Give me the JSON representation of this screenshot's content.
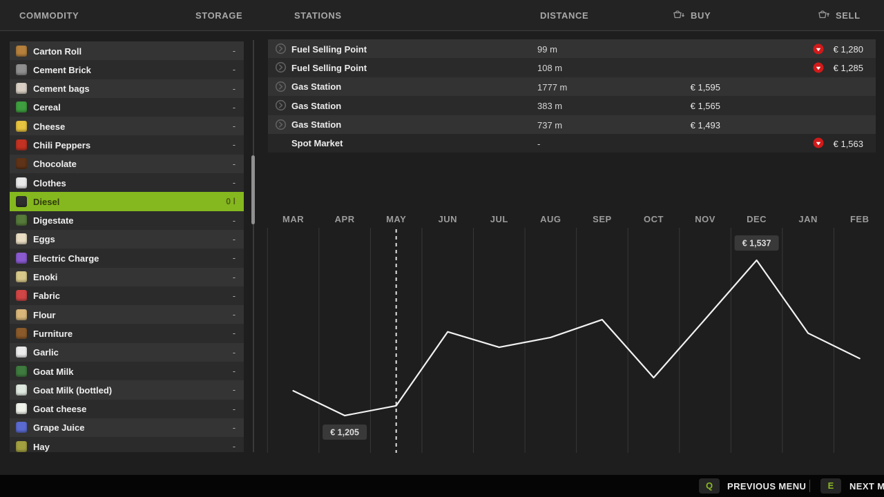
{
  "header": {
    "commodity": "COMMODITY",
    "storage": "STORAGE",
    "stations": "STATIONS",
    "distance": "DISTANCE",
    "buy": "BUY",
    "sell": "SELL"
  },
  "sidebar": {
    "items": [
      {
        "label": "Carton Roll",
        "value": "-",
        "icon": "carton-roll-icon",
        "icon_color": "#b5803c",
        "selected": false
      },
      {
        "label": "Cement Brick",
        "value": "-",
        "icon": "cement-brick-icon",
        "icon_color": "#8f8f8f",
        "selected": false
      },
      {
        "label": "Cement bags",
        "value": "-",
        "icon": "cement-bags-icon",
        "icon_color": "#d9cfc4",
        "selected": false
      },
      {
        "label": "Cereal",
        "value": "-",
        "icon": "cereal-icon",
        "icon_color": "#3f9e3f",
        "selected": false
      },
      {
        "label": "Cheese",
        "value": "-",
        "icon": "cheese-icon",
        "icon_color": "#e7c33f",
        "selected": false
      },
      {
        "label": "Chili Peppers",
        "value": "-",
        "icon": "chili-peppers-icon",
        "icon_color": "#c23222",
        "selected": false
      },
      {
        "label": "Chocolate",
        "value": "-",
        "icon": "chocolate-icon",
        "icon_color": "#5f3317",
        "selected": false
      },
      {
        "label": "Clothes",
        "value": "-",
        "icon": "clothes-icon",
        "icon_color": "#e9e9e9",
        "selected": false
      },
      {
        "label": "Diesel",
        "value": "0 l",
        "icon": "diesel-icon",
        "icon_color": "#2e2e2e",
        "selected": true
      },
      {
        "label": "Digestate",
        "value": "-",
        "icon": "digestate-icon",
        "icon_color": "#557a3a",
        "selected": false
      },
      {
        "label": "Eggs",
        "value": "-",
        "icon": "eggs-icon",
        "icon_color": "#e9ddc4",
        "selected": false
      },
      {
        "label": "Electric Charge",
        "value": "-",
        "icon": "electric-charge-icon",
        "icon_color": "#8a5ad0",
        "selected": false
      },
      {
        "label": "Enoki",
        "value": "-",
        "icon": "enoki-icon",
        "icon_color": "#d8c98a",
        "selected": false
      },
      {
        "label": "Fabric",
        "value": "-",
        "icon": "fabric-icon",
        "icon_color": "#d04545",
        "selected": false
      },
      {
        "label": "Flour",
        "value": "-",
        "icon": "flour-icon",
        "icon_color": "#d9b77a",
        "selected": false
      },
      {
        "label": "Furniture",
        "value": "-",
        "icon": "furniture-icon",
        "icon_color": "#8a5a2a",
        "selected": false
      },
      {
        "label": "Garlic",
        "value": "-",
        "icon": "garlic-icon",
        "icon_color": "#ececec",
        "selected": false
      },
      {
        "label": "Goat Milk",
        "value": "-",
        "icon": "goat-milk-icon",
        "icon_color": "#3f7a3f",
        "selected": false
      },
      {
        "label": "Goat Milk (bottled)",
        "value": "-",
        "icon": "goat-milk-bottled-icon",
        "icon_color": "#dfe9df",
        "selected": false
      },
      {
        "label": "Goat cheese",
        "value": "-",
        "icon": "goat-cheese-icon",
        "icon_color": "#eef2ea",
        "selected": false
      },
      {
        "label": "Grape Juice",
        "value": "-",
        "icon": "grape-juice-icon",
        "icon_color": "#5a6ad0",
        "selected": false
      },
      {
        "label": "Hay",
        "value": "-",
        "icon": "hay-icon",
        "icon_color": "#a3a040",
        "selected": false
      }
    ]
  },
  "stations": {
    "rows": [
      {
        "name": "Fuel Selling Point",
        "visit": true,
        "distance": "99 m",
        "buy": "",
        "sell": "€ 1,280",
        "trend": "down"
      },
      {
        "name": "Fuel Selling Point",
        "visit": true,
        "distance": "108 m",
        "buy": "",
        "sell": "€ 1,285",
        "trend": "down"
      },
      {
        "name": "Gas Station",
        "visit": true,
        "distance": "1777 m",
        "buy": "€ 1,595",
        "sell": "",
        "trend": "none"
      },
      {
        "name": "Gas Station",
        "visit": true,
        "distance": "383 m",
        "buy": "€ 1,565",
        "sell": "",
        "trend": "none"
      },
      {
        "name": "Gas Station",
        "visit": true,
        "distance": "737 m",
        "buy": "€ 1,493",
        "sell": "",
        "trend": "none"
      },
      {
        "name": "Spot Market",
        "visit": false,
        "distance": "-",
        "buy": "",
        "sell": "€ 1,563",
        "trend": "down"
      }
    ]
  },
  "chart_data": {
    "type": "line",
    "categories": [
      "MAR",
      "APR",
      "MAY",
      "JUN",
      "JUL",
      "AUG",
      "SEP",
      "OCT",
      "NOV",
      "DEC",
      "JAN",
      "FEB"
    ],
    "values": [
      1258,
      1205,
      1226,
      1384,
      1351,
      1372,
      1410,
      1286,
      1411,
      1537,
      1381,
      1327
    ],
    "unit": "€",
    "ylim": [
      1150,
      1600
    ],
    "grid": "vertical",
    "legend": "none",
    "current_month_marker": "MAY",
    "annotations": [
      {
        "month": "APR",
        "label": "€ 1,205",
        "position": "below"
      },
      {
        "month": "DEC",
        "label": "€ 1,537",
        "position": "above"
      }
    ]
  },
  "footer": {
    "prev_key": "Q",
    "prev_label": "PREVIOUS MENU",
    "next_key": "E",
    "next_label": "NEXT MENU"
  },
  "colors": {
    "accent_green": "#84b81e",
    "alert_red": "#d11a1a",
    "row_light": "#343434",
    "row_dark": "#2b2b2b",
    "grid_line": "#383838",
    "price_line": "#f2f2f2",
    "tooltip_bg": "#3b3b3b"
  }
}
